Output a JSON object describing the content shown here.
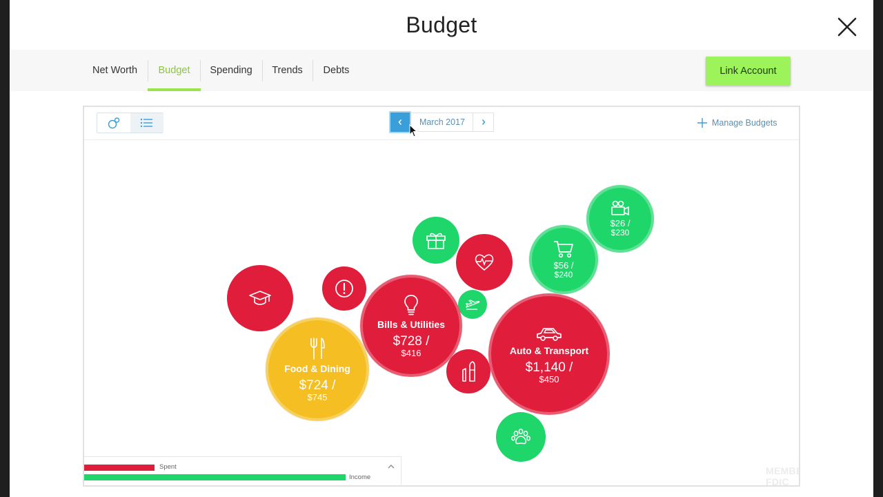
{
  "header": {
    "title": "Budget"
  },
  "tabs": [
    {
      "label": "Net Worth"
    },
    {
      "label": "Budget"
    },
    {
      "label": "Spending"
    },
    {
      "label": "Trends"
    },
    {
      "label": "Debts"
    }
  ],
  "active_tab": "Budget",
  "link_account": {
    "label": "Link Account"
  },
  "toolbar": {
    "month": "March 2017",
    "manage": "Manage Budgets"
  },
  "bubbles": {
    "auto": {
      "name": "Auto & Transport",
      "spent": "$1,140 /",
      "budget": "$450",
      "icon": "car-icon",
      "status": "over"
    },
    "bills": {
      "name": "Bills & Utilities",
      "spent": "$728 /",
      "budget": "$416",
      "icon": "lightbulb-icon",
      "status": "over"
    },
    "food": {
      "name": "Food & Dining",
      "spent": "$724 /",
      "budget": "$745",
      "icon": "fork-knife-icon",
      "status": "near"
    },
    "shopping": {
      "spent": "$56 /",
      "budget": "$240",
      "icon": "shopping-cart-icon",
      "status": "under"
    },
    "entertainment": {
      "spent": "$26 /",
      "budget": "$230",
      "icon": "video-camera-icon",
      "status": "under"
    },
    "education": {
      "icon": "graduation-cap-icon",
      "status": "over"
    },
    "uncategorized": {
      "icon": "alert-icon",
      "status": "over"
    },
    "gifts": {
      "icon": "gift-icon",
      "status": "under"
    },
    "health": {
      "icon": "heartbeat-icon",
      "status": "over"
    },
    "travel": {
      "icon": "airplane-icon",
      "status": "under"
    },
    "personal_care": {
      "icon": "toothbrush-icon",
      "status": "over"
    },
    "pets": {
      "icon": "paw-icon",
      "status": "under"
    }
  },
  "legend": {
    "spent": "Spent",
    "income": "Income",
    "spent_fraction": 0.27,
    "income_fraction": 1.0
  },
  "footer": {
    "fdic": "MEMBER FDIC"
  },
  "colors": {
    "over": "#e01e3c",
    "under": "#1fd66b",
    "near": "#f5be22",
    "accent_green": "#9cf35a",
    "nav_blue": "#3a9fd8"
  }
}
